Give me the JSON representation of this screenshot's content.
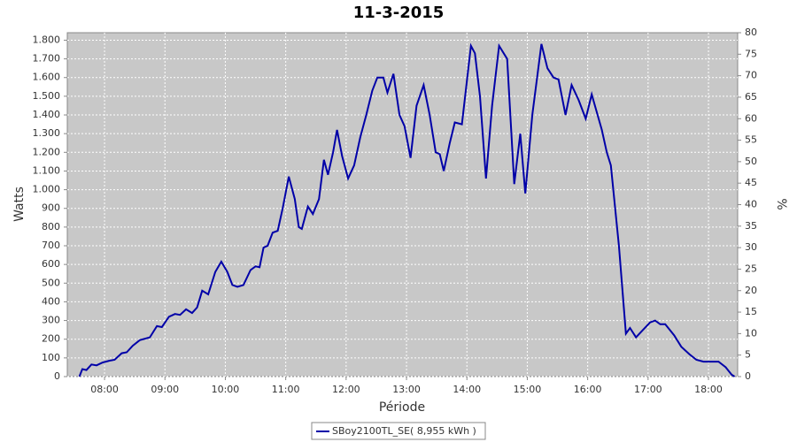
{
  "chart_data": {
    "type": "line",
    "title": "11-3-2015",
    "x_label": "Période",
    "y_label": "Watts",
    "y2_label": "%",
    "x": [
      "07:35",
      "07:38",
      "07:42",
      "07:47",
      "07:52",
      "07:58",
      "08:05",
      "08:10",
      "08:17",
      "08:22",
      "08:28",
      "08:35",
      "08:45",
      "08:52",
      "08:57",
      "09:04",
      "09:10",
      "09:15",
      "09:21",
      "09:27",
      "09:32",
      "09:37",
      "09:43",
      "09:50",
      "09:56",
      "10:02",
      "10:07",
      "10:12",
      "10:18",
      "10:25",
      "10:30",
      "10:34",
      "10:38",
      "10:42",
      "10:47",
      "10:52",
      "10:57",
      "11:03",
      "11:09",
      "11:13",
      "11:16",
      "11:22",
      "11:27",
      "11:33",
      "11:38",
      "11:42",
      "11:47",
      "11:51",
      "11:56",
      "12:02",
      "12:08",
      "12:14",
      "12:20",
      "12:26",
      "12:31",
      "12:37",
      "12:41",
      "12:47",
      "12:53",
      "12:58",
      "13:04",
      "13:10",
      "13:17",
      "13:23",
      "13:29",
      "13:33",
      "13:37",
      "13:43",
      "13:48",
      "13:55",
      "14:04",
      "14:08",
      "14:13",
      "14:19",
      "14:25",
      "14:32",
      "14:40",
      "14:47",
      "14:53",
      "14:58",
      "15:05",
      "15:14",
      "15:20",
      "15:26",
      "15:31",
      "15:38",
      "15:44",
      "15:51",
      "15:58",
      "16:04",
      "16:14",
      "16:19",
      "16:23",
      "16:31",
      "16:38",
      "16:42",
      "16:48",
      "16:55",
      "17:02",
      "17:07",
      "17:12",
      "17:17",
      "17:26",
      "17:33",
      "17:41",
      "17:48",
      "17:55",
      "18:03",
      "18:10",
      "18:17",
      "18:23",
      "18:26"
    ],
    "series": [
      {
        "name": "SBoy2100TL_SE( 8,955 kWh )",
        "color": "#0000a8",
        "values": [
          0,
          40,
          35,
          65,
          60,
          75,
          85,
          90,
          125,
          130,
          165,
          195,
          210,
          270,
          265,
          320,
          335,
          330,
          360,
          340,
          370,
          460,
          440,
          560,
          615,
          560,
          490,
          480,
          490,
          570,
          590,
          585,
          690,
          700,
          770,
          780,
          900,
          1070,
          950,
          800,
          790,
          910,
          870,
          950,
          1160,
          1080,
          1200,
          1320,
          1180,
          1060,
          1130,
          1280,
          1400,
          1530,
          1600,
          1600,
          1520,
          1620,
          1400,
          1340,
          1170,
          1450,
          1560,
          1400,
          1200,
          1190,
          1100,
          1250,
          1360,
          1350,
          1770,
          1730,
          1500,
          1060,
          1450,
          1770,
          1700,
          1030,
          1300,
          980,
          1400,
          1780,
          1650,
          1600,
          1590,
          1400,
          1560,
          1480,
          1380,
          1510,
          1320,
          1200,
          1130,
          700,
          230,
          260,
          210,
          250,
          290,
          300,
          280,
          280,
          220,
          160,
          120,
          90,
          80,
          80,
          80,
          50,
          10,
          0
        ]
      }
    ],
    "xlim": [
      "07:23",
      "18:29"
    ],
    "xticks": [
      "08:00",
      "09:00",
      "10:00",
      "11:00",
      "12:00",
      "13:00",
      "14:00",
      "15:00",
      "16:00",
      "17:00",
      "18:00"
    ],
    "ylim": [
      0,
      1840
    ],
    "yticks": [
      0,
      100,
      200,
      300,
      400,
      500,
      600,
      700,
      800,
      900,
      {
        "value": 1000,
        "label": "1.000"
      },
      {
        "value": 1100,
        "label": "1.100"
      },
      {
        "value": 1200,
        "label": "1.200"
      },
      {
        "value": 1300,
        "label": "1.300"
      },
      {
        "value": 1400,
        "label": "1.400"
      },
      {
        "value": 1500,
        "label": "1.500"
      },
      {
        "value": 1600,
        "label": "1.600"
      },
      {
        "value": 1700,
        "label": "1.700"
      },
      {
        "value": 1800,
        "label": "1.800"
      }
    ],
    "y2lim": [
      0,
      80
    ],
    "y2ticks": [
      0,
      5,
      10,
      15,
      20,
      25,
      30,
      35,
      40,
      45,
      50,
      55,
      60,
      65,
      70,
      75,
      80
    ],
    "grid": true,
    "legend": "bottom"
  }
}
